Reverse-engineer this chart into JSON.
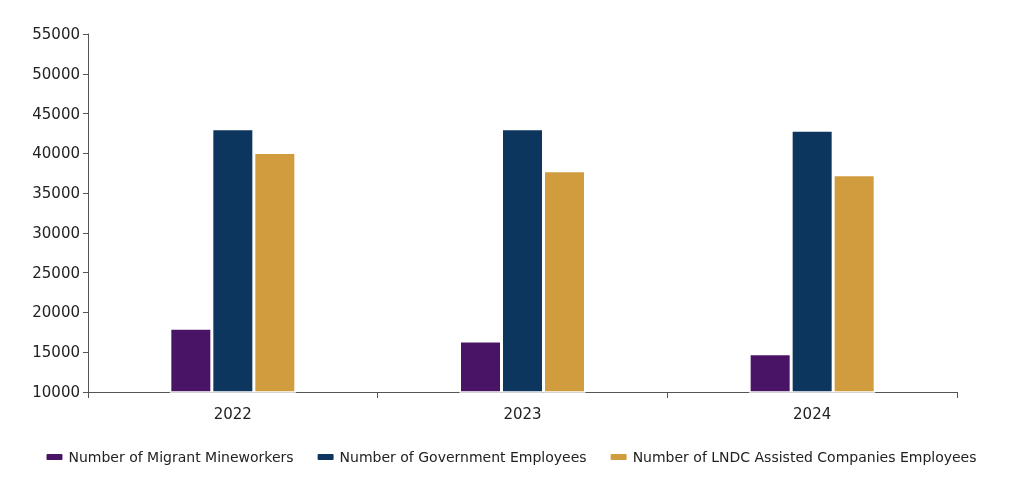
{
  "chart_data": {
    "type": "bar",
    "categories": [
      "2022",
      "2023",
      "2024"
    ],
    "series": [
      {
        "name": "Number of Migrant Mineworkers",
        "color": "#4a1466",
        "values": [
          18000,
          16400,
          14800
        ]
      },
      {
        "name": "Number of Government Employees",
        "color": "#0d365e",
        "values": [
          43100,
          43100,
          42900
        ]
      },
      {
        "name": "Number of LNDC Assisted Companies Employees",
        "color": "#d09c3e",
        "values": [
          40100,
          37800,
          37300
        ]
      }
    ],
    "ylim": [
      10000,
      55000
    ],
    "yticks": [
      10000,
      15000,
      20000,
      25000,
      30000,
      35000,
      40000,
      45000,
      50000,
      55000
    ],
    "grid": false,
    "legend": "bottom"
  }
}
